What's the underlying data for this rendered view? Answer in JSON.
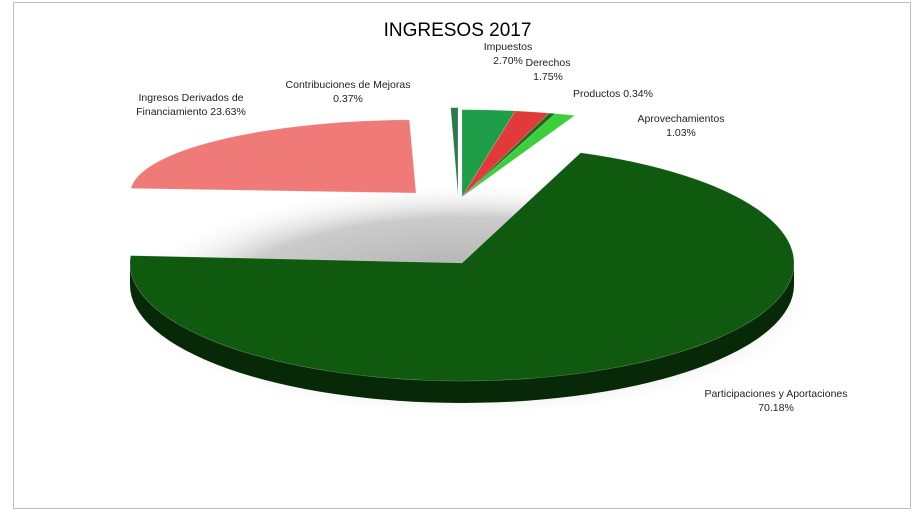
{
  "chart_data": {
    "type": "pie",
    "title": "INGRESOS 2017",
    "style": "3d-exploded",
    "slices": [
      {
        "name": "Impuestos",
        "value": 2.7,
        "value_label": "2.70%",
        "color": "#1f9e4a"
      },
      {
        "name": "Derechos",
        "value": 1.75,
        "value_label": "1.75%",
        "color": "#e23a3a"
      },
      {
        "name": "Productos",
        "value": 0.34,
        "value_label": "0.34%",
        "color": "#1b6e1b"
      },
      {
        "name": "Aprovechamientos",
        "value": 1.03,
        "value_label": "1.03%",
        "color": "#3ccf3c"
      },
      {
        "name": "Participaciones y Aportaciones",
        "value": 70.18,
        "value_label": "70.18%",
        "color": "#0f5a0f"
      },
      {
        "name": "Ingresos Derivados de Financiamiento",
        "value": 23.63,
        "value_label": "23.63%",
        "color": "#f07a78"
      },
      {
        "name": "Contribuciones de Mejoras",
        "value": 0.37,
        "value_label": "0.37%",
        "color": "#2f7a4a"
      }
    ],
    "labels": [
      {
        "line1": "Impuestos",
        "line2": "2.70%"
      },
      {
        "line1": "Derechos",
        "line2": "1.75%"
      },
      {
        "line1": "Productos 0.34%",
        "line2": ""
      },
      {
        "line1": "Aprovechamientos",
        "line2": "1.03%"
      },
      {
        "line1": "Participaciones y Aportaciones",
        "line2": "70.18%"
      },
      {
        "line1": "Ingresos Derivados de",
        "line2": "Financiamiento 23.63%"
      },
      {
        "line1": "Contribuciones de Mejoras",
        "line2": "0.37%"
      }
    ]
  }
}
